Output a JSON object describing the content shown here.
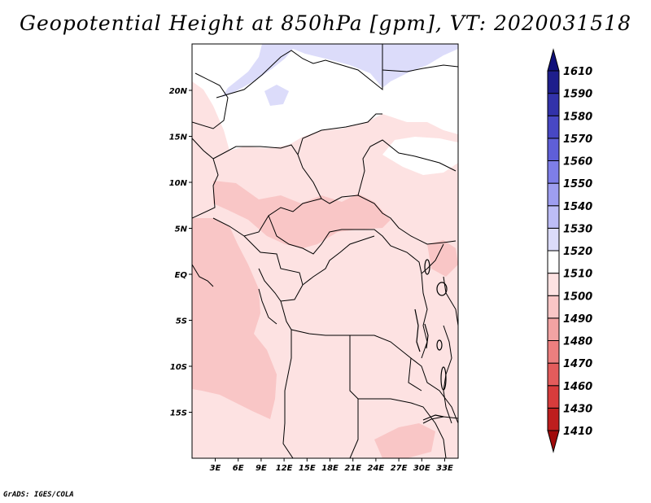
{
  "title": "Geopotential Height at 850hPa [gpm], VT: 2020031518",
  "footer": "GrADS: IGES/COLA",
  "map": {
    "variable": "Geopotential Height",
    "level": "850hPa",
    "units": "gpm",
    "valid_time": "2020031518",
    "lat_labels": [
      "20N",
      "15N",
      "10N",
      "5N",
      "EQ",
      "5S",
      "10S",
      "15S"
    ],
    "lon_labels": [
      "3E",
      "6E",
      "9E",
      "12E",
      "15E",
      "18E",
      "21E",
      "24E",
      "27E",
      "30E",
      "33E"
    ]
  },
  "colorbar": {
    "levels": [
      "1410",
      "1430",
      "1460",
      "1470",
      "1480",
      "1490",
      "1500",
      "1510",
      "1520",
      "1530",
      "1540",
      "1550",
      "1560",
      "1570",
      "1580",
      "1590",
      "1610"
    ],
    "colors": [
      "#a00a0a",
      "#be1e1e",
      "#d73c3c",
      "#e35c5c",
      "#ec7f7f",
      "#f2a3a3",
      "#f9c6c6",
      "#fde2e2",
      "#ffffff",
      "#dcdcfa",
      "#bdbdf6",
      "#9e9ef0",
      "#7e7ee8",
      "#5f5fd8",
      "#4848c4",
      "#3232aa",
      "#1e1e8c",
      "#10107a"
    ],
    "shading": {
      "low": "#f9c6c6",
      "mid": "#fde2e2",
      "high": "#ffffff",
      "top": "#dcdcfa"
    }
  }
}
